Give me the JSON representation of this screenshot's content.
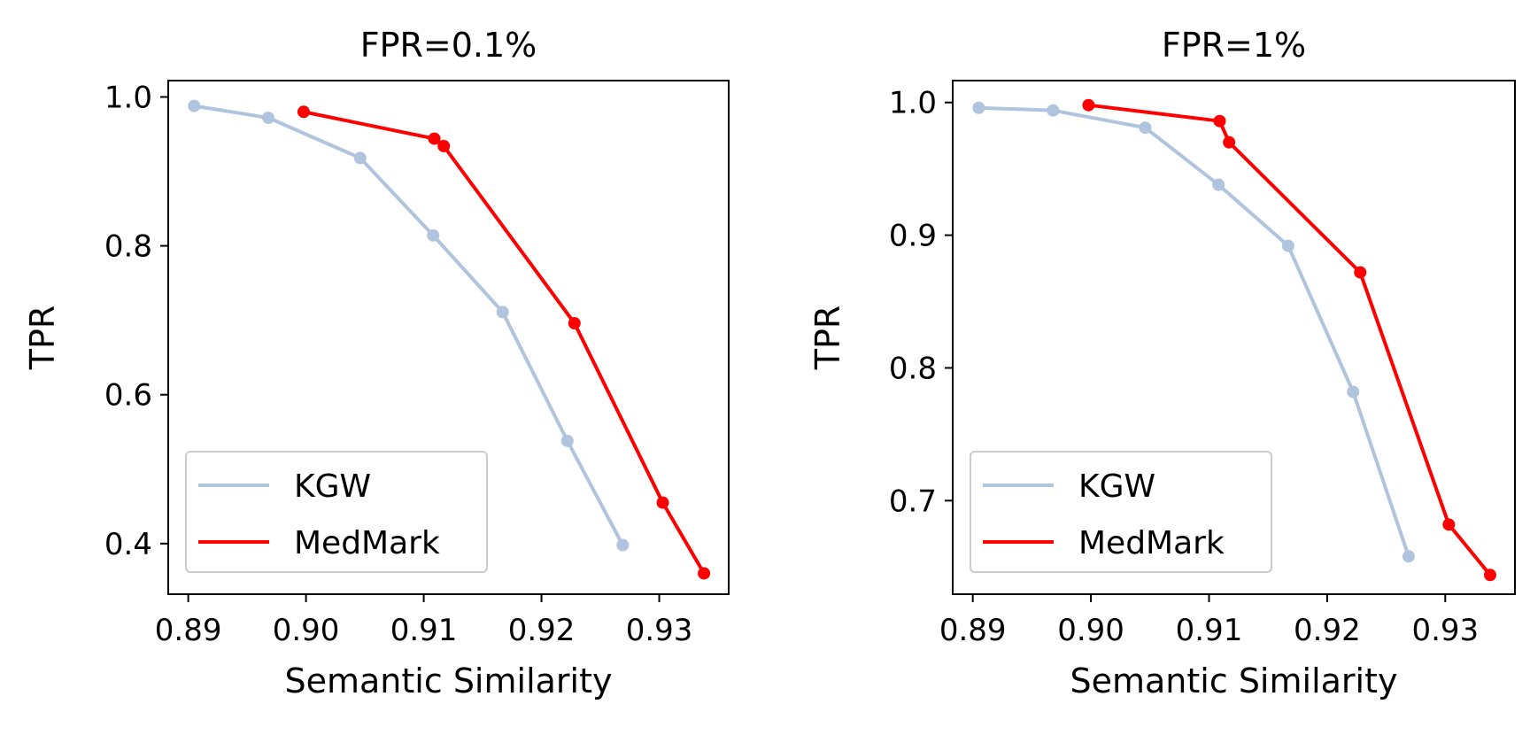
{
  "chart_data": [
    {
      "type": "line",
      "title": "FPR=0.1%",
      "xlabel": "Semantic Similarity",
      "ylabel": "TPR",
      "xlim": [
        0.8883,
        0.9359
      ],
      "ylim": [
        0.332,
        1.022
      ],
      "xticks": [
        0.89,
        0.9,
        0.91,
        0.92,
        0.93
      ],
      "xtick_labels": [
        "0.89",
        "0.90",
        "0.91",
        "0.92",
        "0.93"
      ],
      "yticks": [
        0.4,
        0.6,
        0.8,
        1.0
      ],
      "ytick_labels": [
        "0.4",
        "0.6",
        "0.8",
        "1.0"
      ],
      "legend_position": "lower-left",
      "series": [
        {
          "name": "KGW",
          "color": "#b0c4de",
          "x": [
            0.8905,
            0.8968,
            0.9046,
            0.9108,
            0.9167,
            0.9222,
            0.9269
          ],
          "y": [
            0.988,
            0.972,
            0.918,
            0.814,
            0.711,
            0.538,
            0.398
          ]
        },
        {
          "name": "MedMark",
          "color": "#ff0000",
          "x": [
            0.8998,
            0.9109,
            0.9117,
            0.9228,
            0.9303,
            0.9338
          ],
          "y": [
            0.98,
            0.944,
            0.934,
            0.696,
            0.455,
            0.36
          ]
        }
      ]
    },
    {
      "type": "line",
      "title": "FPR=1%",
      "xlabel": "Semantic Similarity",
      "ylabel": "TPR",
      "xlim": [
        0.8883,
        0.9359
      ],
      "ylim": [
        0.6295,
        1.0165
      ],
      "xticks": [
        0.89,
        0.9,
        0.91,
        0.92,
        0.93
      ],
      "xtick_labels": [
        "0.89",
        "0.90",
        "0.91",
        "0.92",
        "0.93"
      ],
      "yticks": [
        0.7,
        0.8,
        0.9,
        1.0
      ],
      "ytick_labels": [
        "0.7",
        "0.8",
        "0.9",
        "1.0"
      ],
      "legend_position": "lower-left",
      "series": [
        {
          "name": "KGW",
          "color": "#b0c4de",
          "x": [
            0.8905,
            0.8968,
            0.9046,
            0.9108,
            0.9167,
            0.9222,
            0.9269
          ],
          "y": [
            0.996,
            0.994,
            0.981,
            0.938,
            0.892,
            0.782,
            0.658
          ]
        },
        {
          "name": "MedMark",
          "color": "#ff0000",
          "x": [
            0.8998,
            0.9109,
            0.9117,
            0.9228,
            0.9303,
            0.9338
          ],
          "y": [
            0.998,
            0.986,
            0.97,
            0.872,
            0.682,
            0.644
          ]
        }
      ]
    }
  ]
}
